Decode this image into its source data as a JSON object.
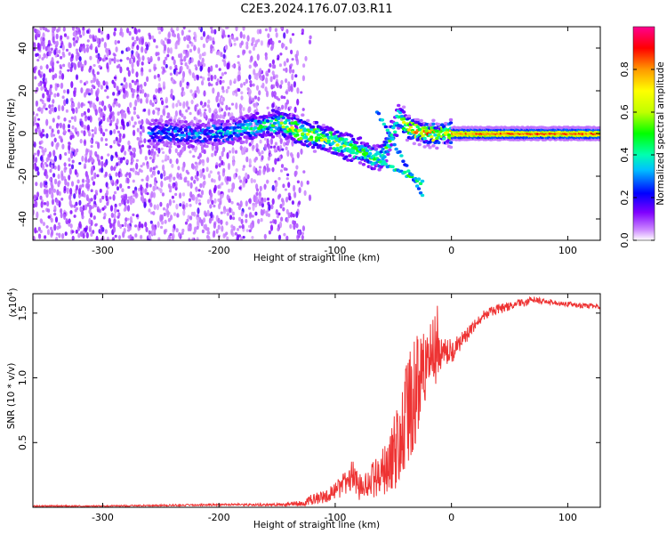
{
  "chart_data": [
    {
      "type": "heatmap",
      "title": "C2E3.2024.176.07.03.R11",
      "xlabel": "Height of straight line (km)",
      "ylabel": "Frequency (Hz)",
      "xlim": [
        -360,
        128
      ],
      "ylim": [
        -50,
        50
      ],
      "xticks": [
        -300,
        -200,
        -100,
        0,
        100
      ],
      "yticks": [
        -40,
        -20,
        0,
        20,
        40
      ],
      "colorbar": {
        "label": "Normalized spectral amplitude",
        "range": [
          0.0,
          1.0
        ],
        "ticks": [
          0.0,
          0.2,
          0.4,
          0.6,
          0.8
        ],
        "colormap": [
          "#ffffff",
          "#cc88ff",
          "#8000ff",
          "#0000ff",
          "#00c0ff",
          "#00ffb0",
          "#00ff00",
          "#c0ff00",
          "#ffff00",
          "#ff9900",
          "#ff0000",
          "#ff0090"
        ]
      },
      "ridge": {
        "description_points_x": [
          -250,
          -200,
          -150,
          -130,
          -110,
          -95,
          -80,
          -60,
          -45,
          -35,
          -20,
          0,
          50,
          128
        ],
        "frequency_hz": [
          0,
          0,
          5,
          1,
          -2,
          -5,
          -8,
          -12,
          8,
          2,
          0,
          0,
          0,
          0
        ],
        "peak_amplitude": [
          0.3,
          0.35,
          0.5,
          0.7,
          0.6,
          0.55,
          0.5,
          0.45,
          0.55,
          0.75,
          0.8,
          0.8,
          0.85,
          0.85
        ]
      },
      "noise_region_x": [
        -360,
        -150
      ]
    },
    {
      "type": "line",
      "xlabel": "Height of straight line (km)",
      "ylabel": "SNR (10 * v/v)",
      "yscale_label": "(x10",
      "yscale_exponent": "4",
      "yscale_suffix": ")",
      "xlim": [
        -360,
        128
      ],
      "ylim": [
        0,
        1.65
      ],
      "xticks": [
        -300,
        -200,
        -100,
        0,
        100
      ],
      "yticks": [
        0.5,
        1.0,
        1.5
      ],
      "color": "#ee3333",
      "series": [
        {
          "x": [
            -360,
            -300,
            -250,
            -200,
            -150,
            -130,
            -120,
            -110,
            -100,
            -90,
            -85,
            -80,
            -70,
            -60,
            -50,
            -40,
            -35,
            -30,
            -25,
            -20,
            -15,
            -10,
            -5,
            0,
            10,
            20,
            30,
            40,
            50,
            60,
            70,
            80,
            90,
            100,
            110,
            128
          ],
          "y": [
            0.01,
            0.01,
            0.015,
            0.02,
            0.02,
            0.03,
            0.06,
            0.08,
            0.12,
            0.2,
            0.25,
            0.15,
            0.2,
            0.25,
            0.4,
            0.6,
            0.75,
            0.95,
            1.05,
            1.1,
            1.1,
            1.15,
            1.15,
            1.2,
            1.3,
            1.4,
            1.5,
            1.53,
            1.55,
            1.58,
            1.6,
            1.59,
            1.58,
            1.57,
            1.56,
            1.55
          ],
          "noise_amplitude": [
            0.005,
            0.005,
            0.006,
            0.008,
            0.01,
            0.02,
            0.04,
            0.05,
            0.07,
            0.1,
            0.12,
            0.1,
            0.12,
            0.18,
            0.3,
            0.45,
            0.5,
            0.45,
            0.35,
            0.25,
            0.2,
            0.2,
            0.15,
            0.1,
            0.06,
            0.05,
            0.04,
            0.04,
            0.03,
            0.03,
            0.03,
            0.02,
            0.02,
            0.02,
            0.02,
            0.02
          ]
        }
      ]
    }
  ]
}
